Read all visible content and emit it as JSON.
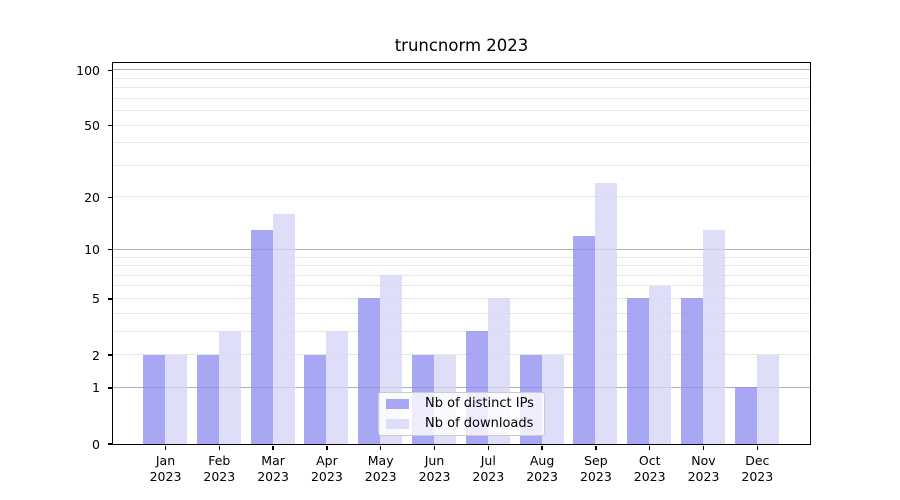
{
  "chart_data": {
    "type": "bar",
    "title": "truncnorm 2023",
    "categories": [
      "Jan 2023",
      "Feb 2023",
      "Mar 2023",
      "Apr 2023",
      "May 2023",
      "Jun 2023",
      "Jul 2023",
      "Aug 2023",
      "Sep 2023",
      "Oct 2023",
      "Nov 2023",
      "Dec 2023"
    ],
    "series": [
      {
        "name": "Nb of distinct IPs",
        "values": [
          2,
          2,
          13,
          2,
          5,
          2,
          3,
          2,
          12,
          5,
          5,
          1
        ],
        "fill": "rgba(140,140,239,0.77)",
        "swatch": "#a6a6f2"
      },
      {
        "name": "Nb of downloads",
        "values": [
          2,
          3,
          16,
          3,
          7,
          2,
          5,
          2,
          24,
          6,
          13,
          2
        ],
        "fill": "rgba(212,212,246,0.77)",
        "swatch": "#dedef8"
      }
    ],
    "xlabel": "",
    "ylabel": "",
    "yscale": "pseudo-log (log10 of value+1)",
    "ylim": [
      0,
      109.4
    ],
    "yticks": [
      0,
      1,
      2,
      5,
      10,
      20,
      50,
      100
    ],
    "ytick_labels": [
      "0",
      "1",
      "2",
      "5",
      "10",
      "20",
      "50",
      "100"
    ],
    "y_major_gridlines": [
      1,
      10,
      100
    ],
    "y_minor_gridlines": [
      2,
      3,
      4,
      5,
      6,
      7,
      8,
      9,
      20,
      30,
      40,
      50,
      60,
      70,
      80,
      90
    ],
    "grid": "on",
    "legend_position": "lower center",
    "colors": {
      "major_grid": "#b0b0b0",
      "minor_grid": "#e7e7e7",
      "spine": "#000000",
      "text": "#000000"
    }
  }
}
